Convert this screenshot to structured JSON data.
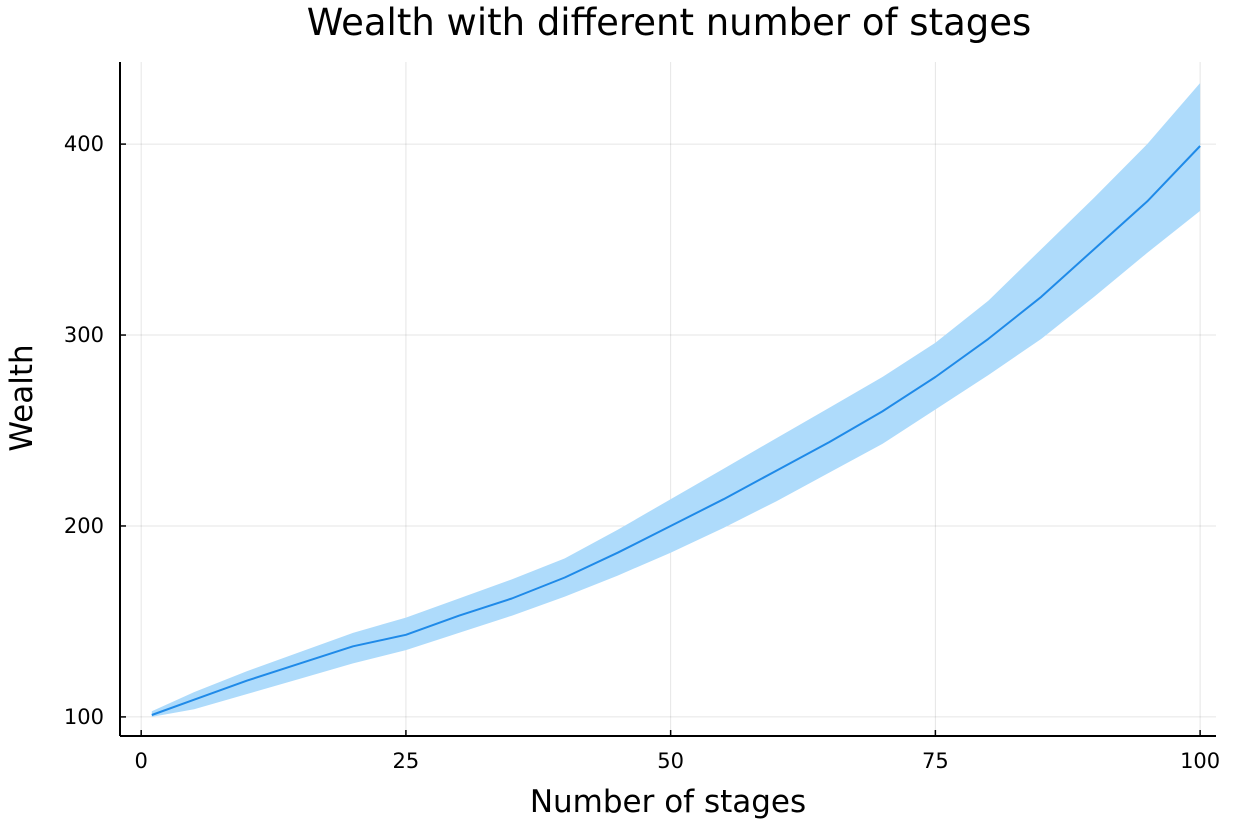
{
  "chart_data": {
    "type": "line",
    "title": "Wealth with different number of stages",
    "xlabel": "Number of stages",
    "ylabel": "Wealth",
    "xlim": [
      -2,
      101.5
    ],
    "ylim": [
      90,
      443
    ],
    "xticks": [
      0,
      25,
      50,
      75,
      100
    ],
    "yticks": [
      100,
      200,
      300,
      400
    ],
    "grid": true,
    "legend": "none",
    "colors": {
      "line": "#1f8ae8",
      "band": "#aedbfb"
    },
    "series": [
      {
        "x": [
          1,
          5,
          10,
          15,
          20,
          25,
          30,
          35,
          40,
          45,
          50,
          55,
          60,
          65,
          70,
          75,
          80,
          85,
          90,
          95,
          100
        ],
        "y": [
          101,
          109,
          119,
          128,
          137,
          143,
          153,
          162,
          173,
          186,
          200,
          214,
          229,
          244,
          260,
          278,
          298,
          320,
          345,
          370,
          399
        ],
        "lower": [
          100,
          104,
          112,
          120,
          128,
          135,
          144,
          153,
          163,
          174,
          186,
          199,
          213,
          228,
          243,
          261,
          279,
          298,
          320,
          343,
          365
        ],
        "upper": [
          103,
          113,
          124,
          134,
          144,
          152,
          162,
          172,
          183,
          198,
          214,
          230,
          246,
          262,
          278,
          296,
          318,
          345,
          372,
          400,
          432
        ]
      }
    ]
  }
}
